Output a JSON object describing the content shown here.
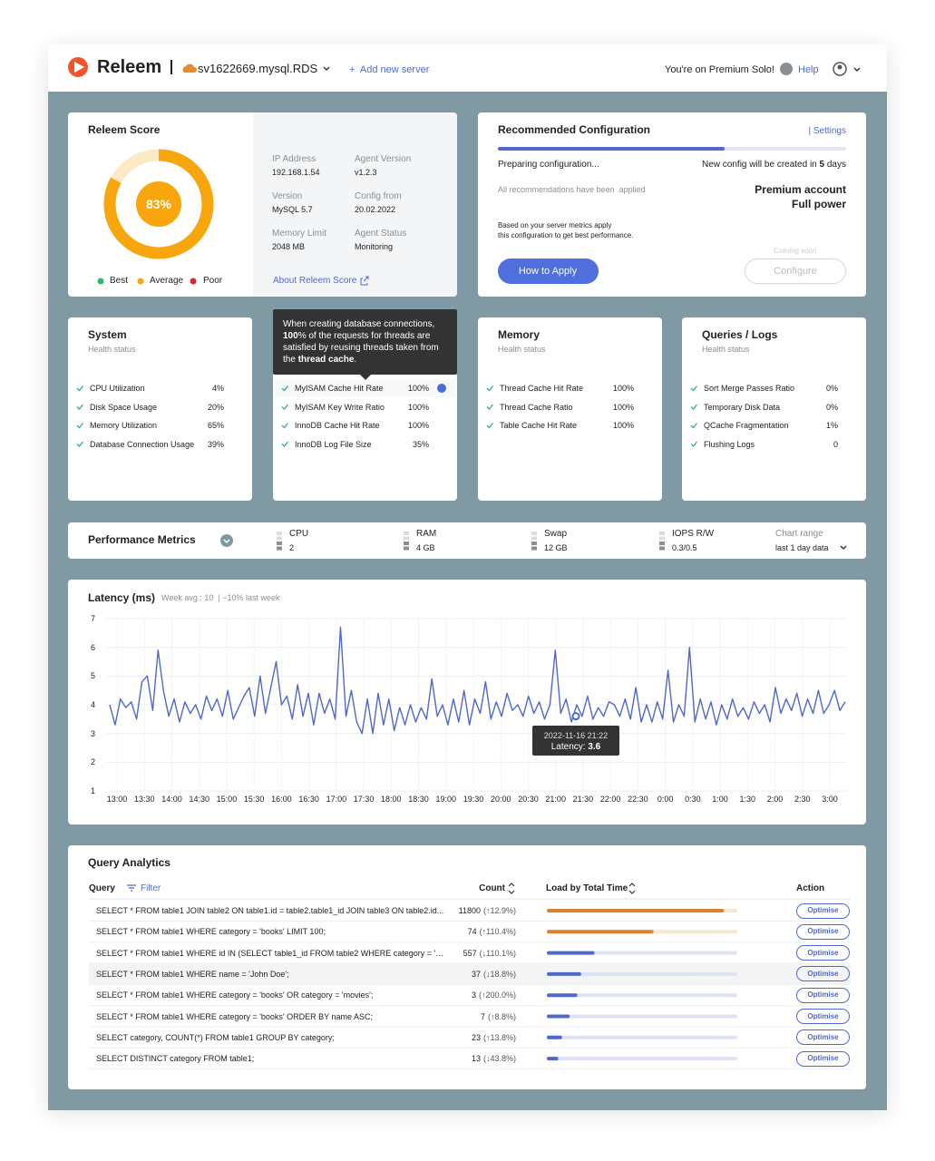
{
  "header": {
    "brand": "Releem",
    "server": "sv1622669.mysql.RDS",
    "add_server": "+  Add new server",
    "premium": "You're on Premium Solo!",
    "help": "Help"
  },
  "score": {
    "title": "Releem Score",
    "value": 83,
    "label": "83%",
    "legend": [
      "Best",
      "Average",
      "Poor"
    ],
    "info": [
      {
        "label": "IP Address",
        "value": "192.168.1.54"
      },
      {
        "label": "Agent Version",
        "value": "v1.2.3"
      },
      {
        "label": "Version",
        "value": "MySQL 5.7"
      },
      {
        "label": "Config from",
        "value": "20.02.2022"
      },
      {
        "label": "Memory Limit",
        "value": "2048 MB"
      },
      {
        "label": "Agent Status",
        "value": "Monitoring"
      }
    ],
    "link": "About Releem Score"
  },
  "config": {
    "title": "Recommended Configuration",
    "settings": "| Settings",
    "progress": 65,
    "preparing": "Preparing configuration...",
    "new_config": [
      "New config will be created in ",
      "5",
      " days"
    ],
    "applied": "All recommendations have been  applied",
    "account": "Premium account",
    "power": "Full power",
    "note": [
      "Based on your server metrics apply",
      "this configuration to get best performance."
    ],
    "apply": "How to Apply",
    "coming": "Coming soon",
    "configure": "Configure"
  },
  "health": [
    {
      "title": "System",
      "subtitle": "Health status",
      "items": [
        {
          "name": "CPU Utilization",
          "value": "4%"
        },
        {
          "name": "Disk Space Usage",
          "value": "20%"
        },
        {
          "name": "Memory Utilization",
          "value": "65%"
        },
        {
          "name": "Database Connection Usage",
          "value": "39%"
        }
      ]
    },
    {
      "items": [
        {
          "name": "MyISAM Cache Hit Rate",
          "value": "100%"
        },
        {
          "name": "MyISAM Key Write Ratio",
          "value": "100%"
        },
        {
          "name": "InnoDB Cache Hit Rate",
          "value": "100%"
        },
        {
          "name": "InnoDB Log File Size",
          "value": "35%"
        }
      ]
    },
    {
      "title": "Memory",
      "subtitle": "Health status",
      "items": [
        {
          "name": "Thread Cache Hit Rate",
          "value": "100%"
        },
        {
          "name": "Thread Cache Ratio",
          "value": "100%"
        },
        {
          "name": "Table Cache Hit Rate",
          "value": "100%"
        }
      ]
    },
    {
      "title": "Queries / Logs",
      "subtitle": "Health status",
      "items": [
        {
          "name": "Sort Merge Passes Ratio",
          "value": "0%"
        },
        {
          "name": "Temporary Disk Data",
          "value": "0%"
        },
        {
          "name": "QCache Fragmentation",
          "value": "1%"
        },
        {
          "name": "Flushing Logs",
          "value": 0
        }
      ]
    }
  ],
  "hint": {
    "lines": [
      [
        "When creating database connections,"
      ],
      [
        "100",
        "% of the requests for threads are"
      ],
      [
        "satisfied by reusing threads taken from"
      ],
      [
        "the ",
        "thread cache",
        "."
      ]
    ]
  },
  "performance": {
    "title": "Performance Metrics",
    "metrics": [
      {
        "name": "CPU",
        "value": 2
      },
      {
        "name": "RAM",
        "value": "4 GB"
      },
      {
        "name": "Swap",
        "value": "12 GB"
      },
      {
        "name": "IOPS R/W",
        "value": "0.3/0.5"
      }
    ],
    "range_label": "Chart range",
    "range": "last 1 day data"
  },
  "latency": {
    "title": "Latency (ms)",
    "subtitle": "Week avg.: 10  | ~10% last week",
    "ylim": [
      1,
      7
    ],
    "yticks": [
      1,
      2,
      3,
      4,
      5,
      6,
      7
    ],
    "xticks": [
      "13:00",
      "13:30",
      "14:00",
      "14:30",
      "15:00",
      "15:30",
      "16:00",
      "16:30",
      "17:00",
      "17:30",
      "18:00",
      "18:30",
      "19:00",
      "19:30",
      "20:00",
      "20:30",
      "21:00",
      "21:30",
      "22:00",
      "22:30",
      "0:00",
      "0:30",
      "1:00",
      "1:30",
      "2:00",
      "2:30",
      "3:00"
    ],
    "values": [
      4.0,
      3.3,
      4.2,
      3.9,
      4.1,
      3.5,
      4.8,
      5.0,
      3.8,
      5.9,
      4.5,
      3.6,
      4.2,
      3.4,
      4.1,
      3.7,
      4.0,
      3.5,
      4.3,
      3.8,
      4.2,
      3.6,
      4.5,
      3.5,
      3.9,
      4.3,
      4.6,
      3.6,
      5.0,
      3.7,
      4.6,
      5.5,
      4.0,
      4.3,
      3.5,
      4.7,
      3.6,
      4.4,
      3.3,
      4.4,
      3.7,
      4.2,
      3.5,
      6.7,
      3.6,
      4.5,
      3.4,
      3.0,
      4.2,
      3.0,
      4.4,
      3.3,
      4.2,
      3.1,
      3.9,
      3.3,
      4.0,
      3.4,
      3.9,
      3.5,
      4.9,
      3.6,
      4.0,
      3.3,
      4.2,
      3.4,
      4.5,
      3.3,
      4.2,
      3.7,
      4.8,
      3.5,
      4.1,
      3.6,
      4.4,
      3.8,
      4.0,
      3.6,
      4.3,
      3.7,
      4.1,
      3.5,
      4.0,
      5.9,
      3.7,
      4.2,
      3.4,
      4.0,
      3.6,
      4.3,
      3.5,
      3.9,
      3.6,
      4.1,
      4.0,
      3.6,
      4.2,
      3.5,
      4.6,
      3.4,
      4.0,
      3.4,
      4.1,
      3.5,
      5.2,
      3.4,
      4.0,
      3.6,
      6.0,
      3.4,
      4.2,
      3.5,
      4.1,
      3.3,
      4.0,
      3.5,
      4.2,
      3.6,
      3.9,
      3.5,
      4.1,
      3.7,
      4.0,
      3.4,
      4.6,
      3.7,
      4.2,
      3.8,
      4.4,
      3.6,
      4.2,
      3.7,
      4.5,
      3.7,
      4.0,
      4.5,
      3.8,
      4.1
    ],
    "tooltip": {
      "date": "2022-11-16 21:22",
      "label": "Latency: ",
      "value": 3.6
    }
  },
  "queries": {
    "title": "Query Analytics",
    "columns": {
      "query": "Query",
      "filter": "Filter",
      "count": "Count",
      "load": "Load by Total Time",
      "action": "Action"
    },
    "action_label": "Optimise",
    "rows": [
      {
        "query": "SELECT * FROM table1 JOIN table2 ON table1.id = table2.table1_id JOIN table3 ON table2.id...",
        "count": 11800,
        "change": "(↑12.9%)",
        "load": 93,
        "color": "#d9822b"
      },
      {
        "query": "SELECT * FROM table1 WHERE category = 'books' LIMIT 100;",
        "count": 74,
        "change": "(↑110.4%)",
        "load": 56,
        "color": "#d9822b"
      },
      {
        "query": "SELECT * FROM table1 WHERE id IN (SELECT table1_id FROM table2 WHERE category = 'book...",
        "count": 557,
        "change": "(↓110.1%)",
        "load": 25,
        "color": "#4f68c9"
      },
      {
        "query": "SELECT * FROM table1 WHERE name = 'John Doe';",
        "count": 37,
        "change": "(↓18.8%)",
        "load": 18,
        "color": "#4f68c9"
      },
      {
        "query": "SELECT * FROM table1 WHERE category = 'books' OR category = 'movies';",
        "count": 3,
        "change": "(↑200.0%)",
        "load": 16,
        "color": "#4f68c9"
      },
      {
        "query": "SELECT * FROM table1 WHERE category = 'books' ORDER BY name ASC;",
        "count": 7,
        "change": "(↑8.8%)",
        "load": 12,
        "color": "#4f68c9"
      },
      {
        "query": "SELECT category, COUNT(*) FROM table1 GROUP BY category;",
        "count": 23,
        "change": "(↑13.8%)",
        "load": 8,
        "color": "#4f68c9"
      },
      {
        "query": "SELECT DISTINCT category FROM table1;",
        "count": 13,
        "change": "(↓43.8%)",
        "load": 6,
        "color": "#4f68c9"
      }
    ]
  }
}
